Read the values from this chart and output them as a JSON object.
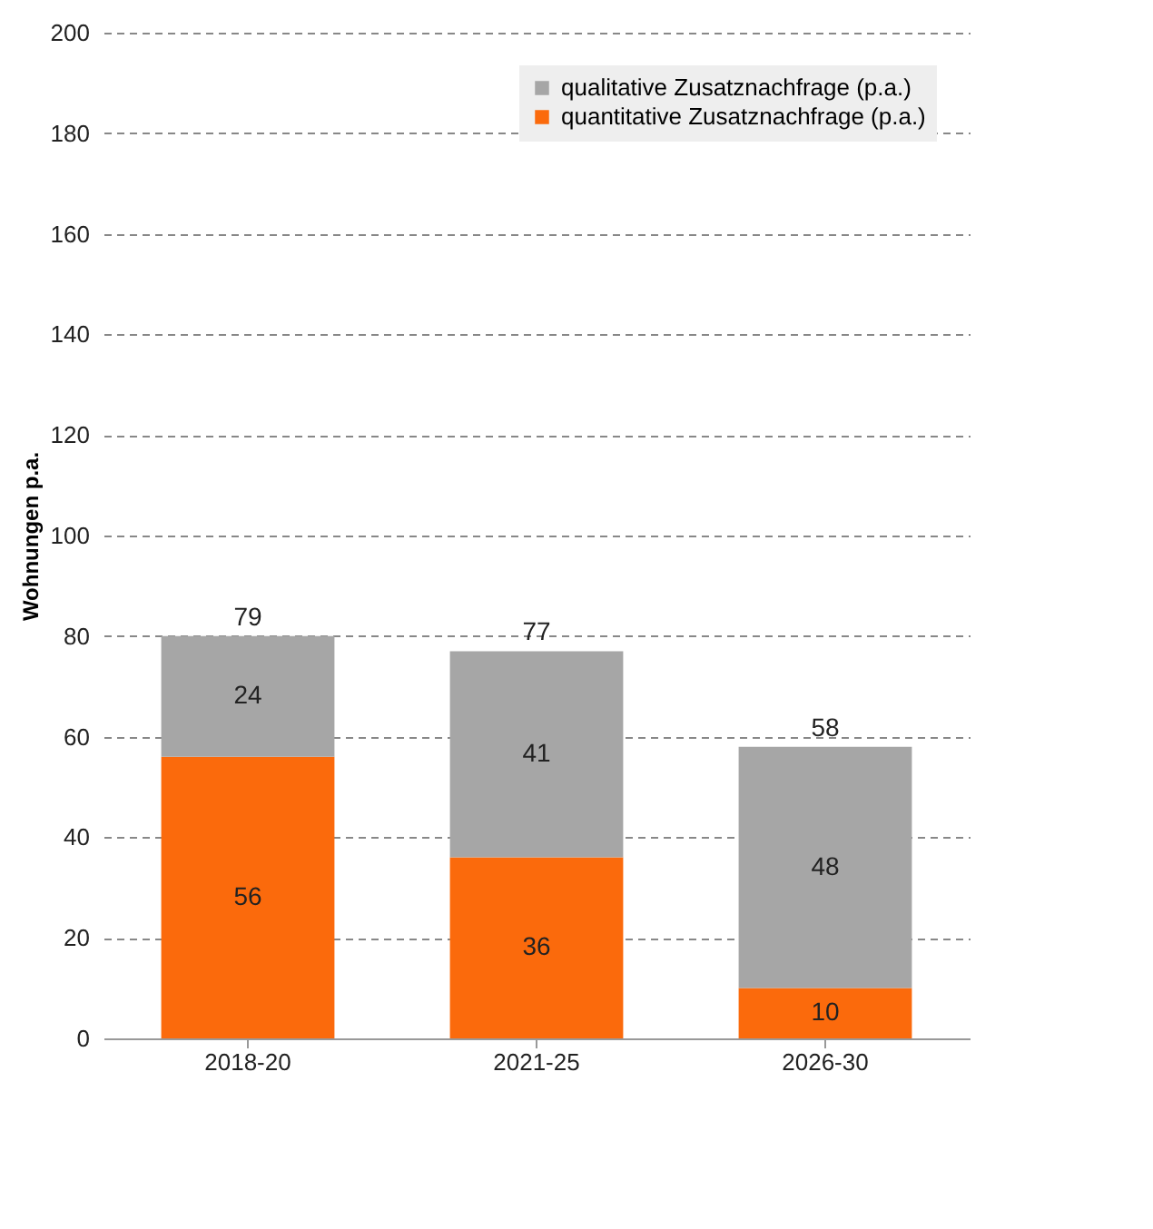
{
  "chart_data": {
    "type": "bar",
    "stacked": true,
    "ylabel": "Wohnungen p.a.",
    "categories": [
      "2018-20",
      "2021-25",
      "2026-30"
    ],
    "series": [
      {
        "name": "quantitative Zusatznachfrage (p.a.)",
        "color": "#fb6a0c",
        "values": [
          56,
          36,
          10
        ]
      },
      {
        "name": "qualitative Zusatznachfrage (p.a.)",
        "color": "#a6a6a6",
        "values": [
          24,
          41,
          48
        ]
      }
    ],
    "totals": [
      "79",
      "77",
      "58"
    ],
    "data_labels": true,
    "ylim": [
      0,
      200
    ],
    "yticks": [
      0,
      20,
      40,
      60,
      80,
      100,
      120,
      140,
      160,
      180,
      200
    ],
    "grid": "y",
    "legend": "top right"
  }
}
